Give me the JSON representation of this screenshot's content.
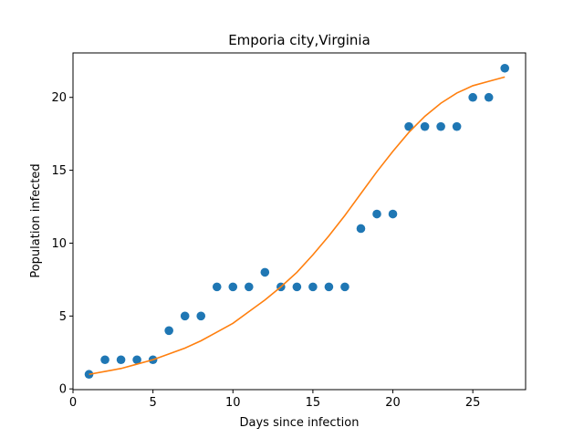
{
  "chart_data": {
    "type": "scatter",
    "title": "Emporia city,Virginia",
    "xlabel": "Days since infection",
    "ylabel": "Population infected",
    "xlim": [
      0.0,
      28.3
    ],
    "ylim": [
      -0.05,
      23.05
    ],
    "xticks": [
      0,
      5,
      10,
      15,
      20,
      25
    ],
    "yticks": [
      0,
      5,
      10,
      15,
      20
    ],
    "grid": false,
    "legend": "none",
    "series": [
      {
        "kind": "scatter",
        "color": "#1f77b4",
        "x": [
          1,
          2,
          3,
          4,
          5,
          6,
          7,
          8,
          9,
          10,
          11,
          12,
          13,
          14,
          15,
          16,
          17,
          18,
          19,
          20,
          21,
          22,
          23,
          24,
          25,
          26,
          27
        ],
        "y": [
          1,
          2,
          2,
          2,
          2,
          4,
          5,
          5,
          7,
          7,
          7,
          8,
          7,
          7,
          7,
          7,
          7,
          11,
          12,
          12,
          18,
          18,
          18,
          18,
          20,
          20,
          22
        ]
      },
      {
        "kind": "line",
        "color": "#ff7f0e",
        "x": [
          1,
          2,
          3,
          4,
          5,
          6,
          7,
          8,
          9,
          10,
          11,
          12,
          13,
          14,
          15,
          16,
          17,
          18,
          19,
          20,
          21,
          22,
          23,
          24,
          25,
          26,
          27
        ],
        "y": [
          1.0,
          1.2,
          1.4,
          1.7,
          2.0,
          2.4,
          2.8,
          3.3,
          3.9,
          4.5,
          5.3,
          6.1,
          7.0,
          8.0,
          9.2,
          10.5,
          11.9,
          13.4,
          14.9,
          16.3,
          17.6,
          18.7,
          19.6,
          20.3,
          20.8,
          21.1,
          21.4
        ]
      }
    ]
  }
}
